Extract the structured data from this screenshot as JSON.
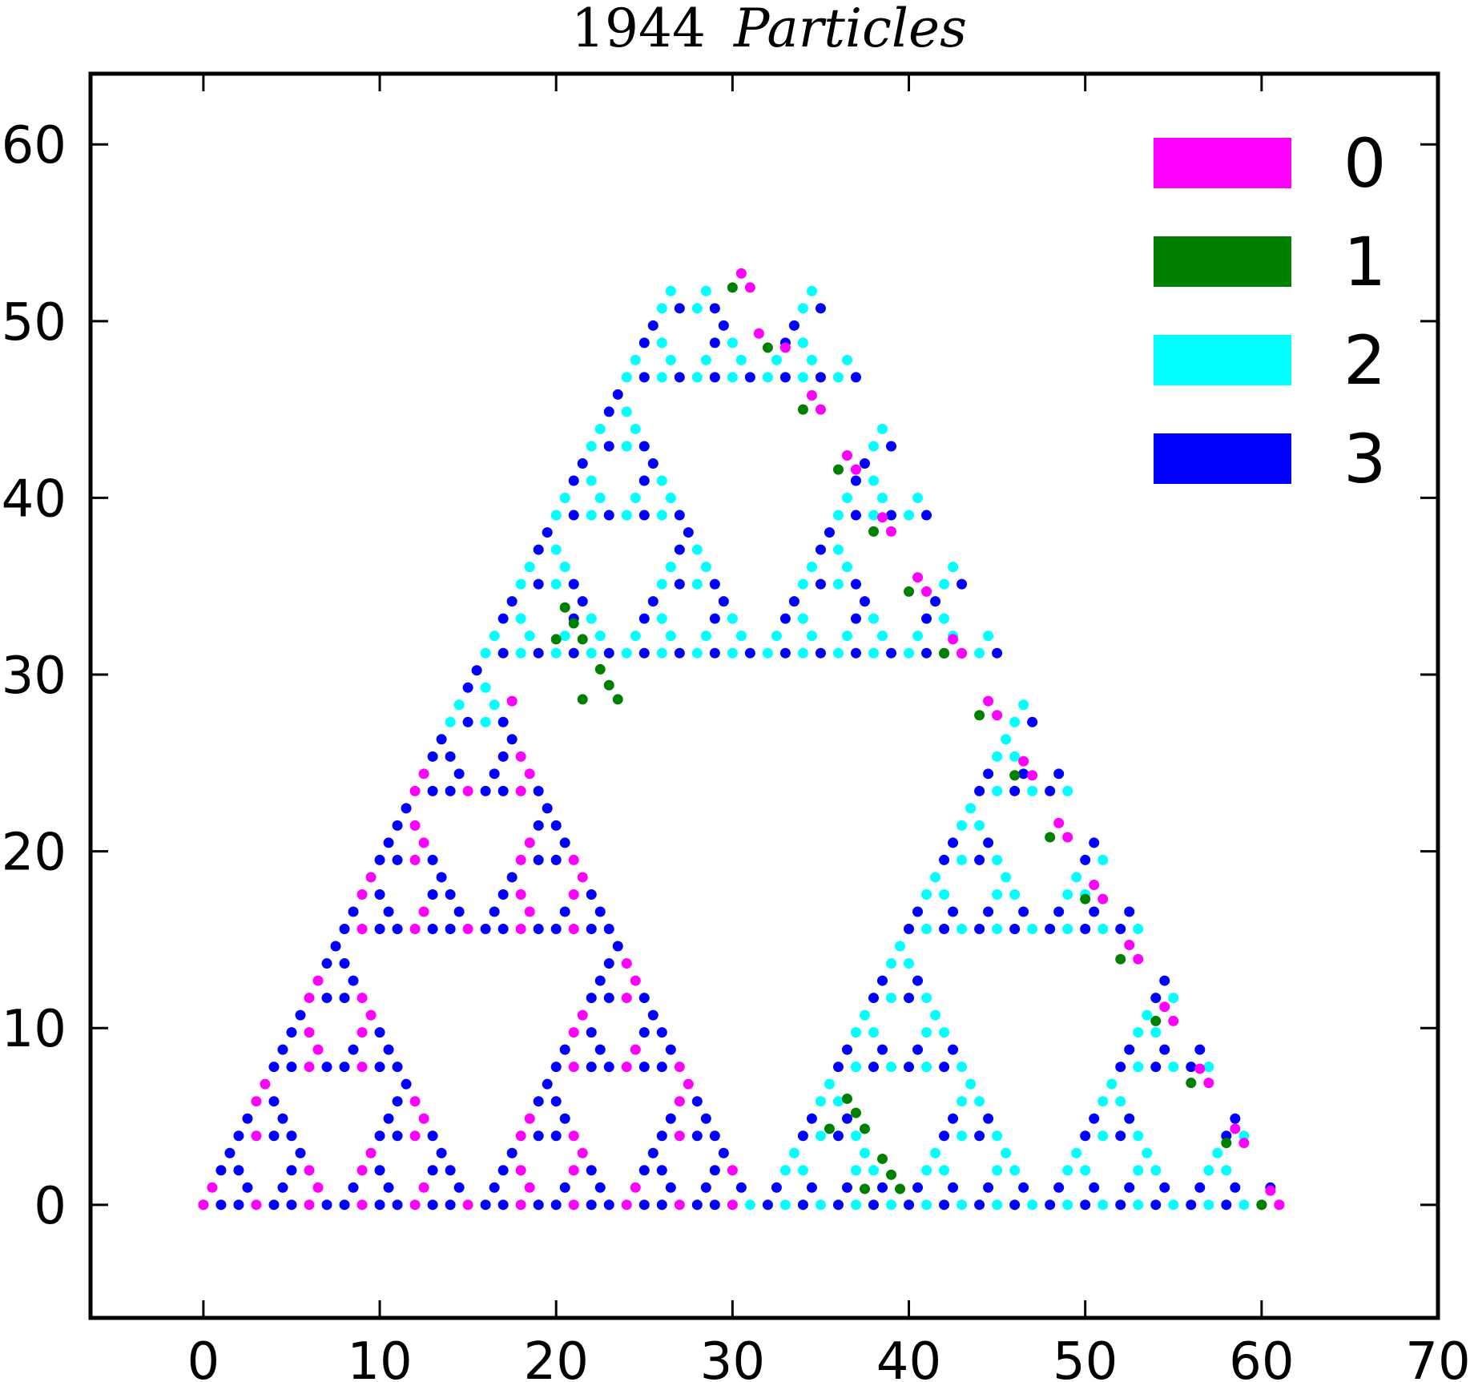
{
  "chart_data": {
    "type": "scatter",
    "title_number": "1944",
    "title_word": "Particles",
    "xlabel": "",
    "ylabel": "",
    "xlim": [
      -6.4,
      70
    ],
    "ylim": [
      -6.4,
      64
    ],
    "xticks": [
      0,
      10,
      20,
      30,
      40,
      50,
      60,
      70
    ],
    "yticks": [
      0,
      10,
      20,
      30,
      40,
      50,
      60
    ],
    "grid": false,
    "legend_position": "top-right",
    "colors": {
      "0": "#ff00ff",
      "1": "#008000",
      "2": "#00ffff",
      "3": "#0000ff"
    },
    "series": [
      {
        "name": "0",
        "color": "#ff00ff"
      },
      {
        "name": "1",
        "color": "#008000"
      },
      {
        "name": "2",
        "color": "#00ffff"
      },
      {
        "name": "3",
        "color": "#0000ff"
      }
    ],
    "lattice": {
      "rows": 54,
      "row_spacing": 0.9755,
      "point_spacing": 1.0
    },
    "points": [
      [
        0,
        0,
        0
      ],
      [
        30.5,
        52.7,
        0
      ],
      [
        61,
        0,
        0
      ],
      [
        30,
        51.9,
        1
      ],
      [
        31,
        51.9,
        0
      ],
      [
        32,
        48.5,
        1
      ],
      [
        31.5,
        49.3,
        0
      ],
      [
        33,
        48.5,
        0
      ],
      [
        34,
        45,
        1
      ],
      [
        34.5,
        45.8,
        0
      ],
      [
        35,
        45,
        0
      ],
      [
        36,
        41.6,
        1
      ],
      [
        36.5,
        42.4,
        0
      ],
      [
        37,
        41.6,
        0
      ],
      [
        38,
        38.1,
        1
      ],
      [
        38.5,
        38.9,
        0
      ],
      [
        39,
        38.1,
        0
      ],
      [
        40,
        34.7,
        1
      ],
      [
        40.5,
        35.5,
        0
      ],
      [
        41,
        34.7,
        0
      ],
      [
        42,
        31.2,
        1
      ],
      [
        42.5,
        32,
        0
      ],
      [
        43,
        31.2,
        0
      ],
      [
        44,
        27.7,
        1
      ],
      [
        44.5,
        28.5,
        0
      ],
      [
        45,
        27.7,
        0
      ],
      [
        17.5,
        28.5,
        0
      ],
      [
        46,
        24.3,
        1
      ],
      [
        46.5,
        25.1,
        0
      ],
      [
        47,
        24.3,
        0
      ],
      [
        48,
        20.8,
        1
      ],
      [
        48.5,
        21.6,
        0
      ],
      [
        49,
        20.8,
        0
      ],
      [
        50,
        17.3,
        1
      ],
      [
        50.5,
        18.1,
        0
      ],
      [
        51,
        17.3,
        0
      ],
      [
        52,
        13.9,
        1
      ],
      [
        52.5,
        14.7,
        0
      ],
      [
        53,
        13.9,
        0
      ],
      [
        54,
        10.4,
        1
      ],
      [
        54.5,
        11.2,
        0
      ],
      [
        55,
        10.4,
        0
      ],
      [
        56,
        6.9,
        1
      ],
      [
        56.5,
        7.7,
        0
      ],
      [
        57,
        6.9,
        0
      ],
      [
        58,
        3.5,
        1
      ],
      [
        58.5,
        4.3,
        0
      ],
      [
        59,
        3.5,
        0
      ],
      [
        60,
        0,
        1
      ],
      [
        60.5,
        0.8,
        0
      ],
      [
        20.5,
        33.8,
        1
      ],
      [
        21,
        32.9,
        1
      ],
      [
        20,
        32,
        1
      ],
      [
        21.5,
        32,
        1
      ],
      [
        22.5,
        30.3,
        1
      ],
      [
        23,
        29.4,
        1
      ],
      [
        21.5,
        28.6,
        1
      ],
      [
        23.5,
        28.6,
        1
      ],
      [
        36.5,
        6,
        1
      ],
      [
        35.5,
        4.3,
        1
      ],
      [
        37,
        5.2,
        1
      ],
      [
        37.5,
        4.3,
        1
      ],
      [
        38.5,
        2.6,
        1
      ],
      [
        39,
        1.7,
        1
      ],
      [
        37.5,
        0.9,
        1
      ],
      [
        39.5,
        0.9,
        1
      ]
    ]
  },
  "legend": {
    "entries": [
      {
        "label": "0",
        "color": "#ff00ff"
      },
      {
        "label": "1",
        "color": "#008000"
      },
      {
        "label": "2",
        "color": "#00ffff"
      },
      {
        "label": "3",
        "color": "#0000ff"
      }
    ]
  }
}
